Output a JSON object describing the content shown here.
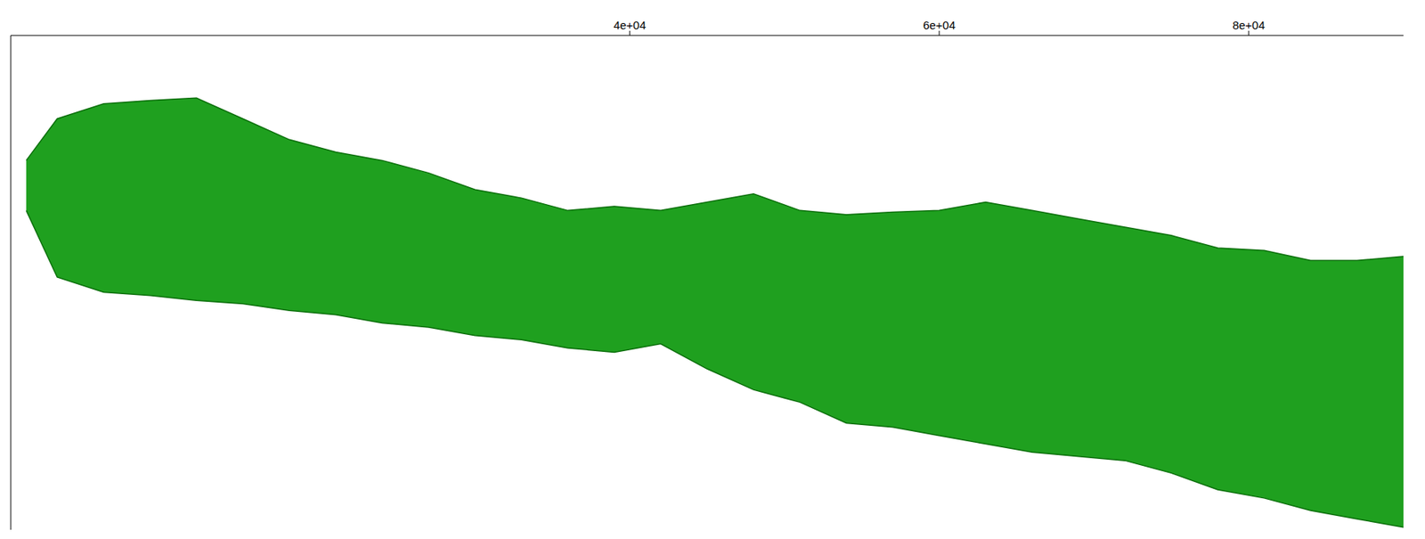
{
  "chart_data": {
    "type": "area",
    "x": [
      1000,
      3000,
      6000,
      9000,
      12000,
      15000,
      18000,
      21000,
      24000,
      27000,
      30000,
      33000,
      36000,
      39000,
      42000,
      45000,
      48000,
      51000,
      54000,
      57000,
      60000,
      63000,
      66000,
      69000,
      72000,
      75000,
      78000,
      81000,
      84000,
      87000,
      90000
    ],
    "values": [
      [
        383,
        443
      ],
      [
        303,
        493
      ],
      [
        285,
        511
      ],
      [
        281,
        515
      ],
      [
        275,
        518
      ],
      [
        271,
        493
      ],
      [
        263,
        468
      ],
      [
        258,
        453
      ],
      [
        248,
        443
      ],
      [
        243,
        428
      ],
      [
        233,
        408
      ],
      [
        228,
        398
      ],
      [
        218,
        383
      ],
      [
        213,
        388
      ],
      [
        223,
        383
      ],
      [
        193,
        393
      ],
      [
        168,
        403
      ],
      [
        153,
        383
      ],
      [
        128,
        378
      ],
      [
        123,
        381
      ],
      [
        113,
        383
      ],
      [
        103,
        393
      ],
      [
        93,
        383
      ],
      [
        88,
        373
      ],
      [
        83,
        363
      ],
      [
        68,
        353
      ],
      [
        48,
        338
      ],
      [
        38,
        335
      ],
      [
        23,
        323
      ],
      [
        13,
        323
      ],
      [
        3,
        328
      ]
    ],
    "color": "#1fa01f",
    "xlim": [
      0,
      90000
    ],
    "xticks": [
      {
        "value": 40000,
        "label": "4e+04"
      },
      {
        "value": 60000,
        "label": "6e+04"
      },
      {
        "value": 80000,
        "label": "8e+04"
      }
    ],
    "ylim": [
      0,
      593
    ],
    "tick_labels": "x",
    "grid": false
  }
}
